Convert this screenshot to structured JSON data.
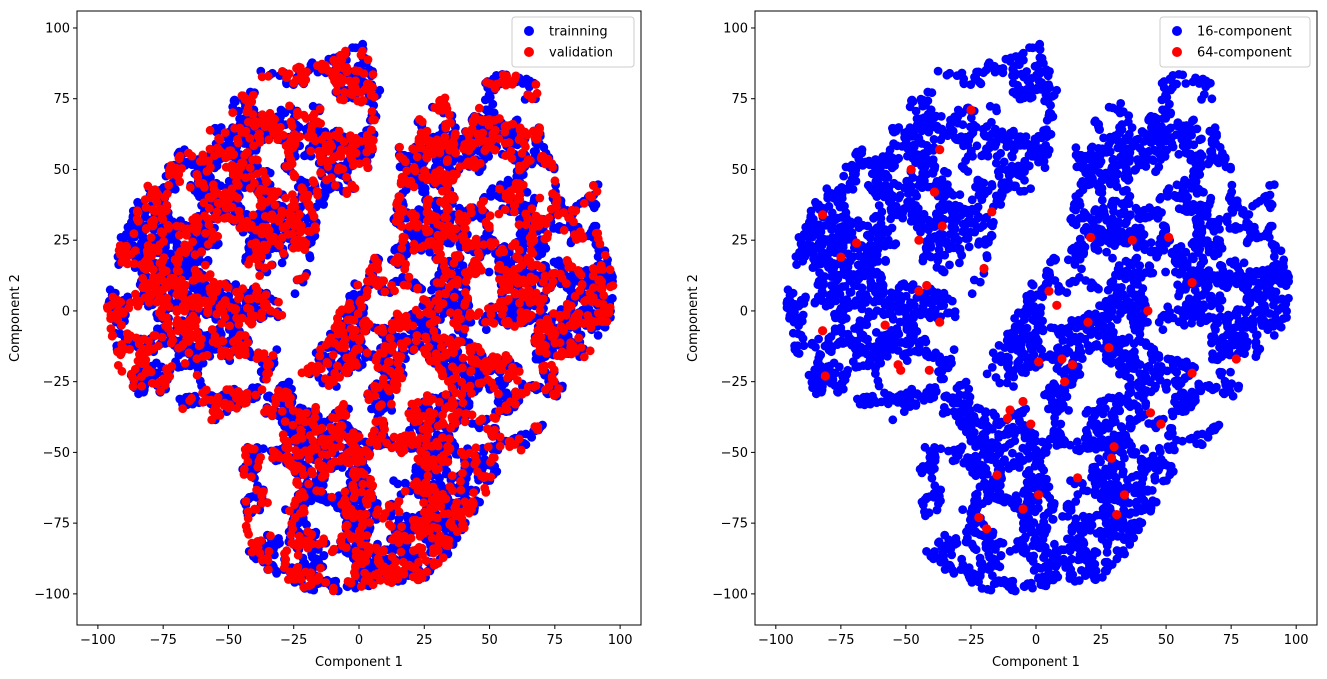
{
  "chart_data": [
    {
      "type": "scatter",
      "title": "",
      "xlabel": "Component 1",
      "ylabel": "Component 2",
      "xlim": [
        -108,
        108
      ],
      "ylim": [
        -111,
        106
      ],
      "xticks": [
        -100,
        -75,
        -50,
        -25,
        0,
        25,
        50,
        75,
        100
      ],
      "yticks": [
        -100,
        -75,
        -50,
        -25,
        0,
        25,
        50,
        75,
        100
      ],
      "grid": false,
      "legend_placement": "top-right",
      "series": [
        {
          "name": "trainning",
          "color": "#0000ff",
          "points": "dense cloud covering both clusters"
        },
        {
          "name": "validation",
          "color": "#ff0000",
          "points": "dense cloud overlapping training"
        }
      ]
    },
    {
      "type": "scatter",
      "title": "",
      "xlabel": "Component 1",
      "ylabel": "Component 2",
      "xlim": [
        -108,
        108
      ],
      "ylim": [
        -111,
        106
      ],
      "xticks": [
        -100,
        -75,
        -50,
        -25,
        0,
        25,
        50,
        75,
        100
      ],
      "yticks": [
        -100,
        -75,
        -50,
        -25,
        0,
        25,
        50,
        75,
        100
      ],
      "grid": false,
      "legend_placement": "top-right",
      "series": [
        {
          "name": "16-component",
          "color": "#0000ff",
          "points": "dense cloud covering both clusters"
        },
        {
          "name": "64-component",
          "color": "#ff0000",
          "points": [
            [
              -25,
              71
            ],
            [
              -37,
              57
            ],
            [
              -48,
              50
            ],
            [
              -39,
              42
            ],
            [
              -17,
              35
            ],
            [
              -82,
              34
            ],
            [
              -36,
              30
            ],
            [
              -45,
              25
            ],
            [
              -69,
              24
            ],
            [
              -20,
              15
            ],
            [
              -75,
              19
            ],
            [
              -42,
              9
            ],
            [
              -45,
              7
            ],
            [
              -58,
              -5
            ],
            [
              -37,
              -4
            ],
            [
              -82,
              -7
            ],
            [
              -81,
              -23
            ],
            [
              -53,
              -19
            ],
            [
              -52,
              -21
            ],
            [
              -41,
              -21
            ],
            [
              21,
              26
            ],
            [
              37,
              25
            ],
            [
              51,
              26
            ],
            [
              60,
              10
            ],
            [
              5,
              7
            ],
            [
              8,
              2
            ],
            [
              20,
              -4
            ],
            [
              43,
              0
            ],
            [
              1,
              -18
            ],
            [
              10,
              -17
            ],
            [
              14,
              -19
            ],
            [
              11,
              -25
            ],
            [
              28,
              -13
            ],
            [
              60,
              -22
            ],
            [
              77,
              -17
            ],
            [
              -5,
              -32
            ],
            [
              -10,
              -35
            ],
            [
              -11,
              -38
            ],
            [
              -2,
              -40
            ],
            [
              44,
              -36
            ],
            [
              48,
              -40
            ],
            [
              30,
              -48
            ],
            [
              29,
              -52
            ],
            [
              16,
              -59
            ],
            [
              -15,
              -58
            ],
            [
              34,
              -65
            ],
            [
              1,
              -65
            ],
            [
              -5,
              -70
            ],
            [
              31,
              -72
            ],
            [
              -22,
              -73
            ],
            [
              -19,
              -77
            ]
          ]
        }
      ]
    }
  ]
}
